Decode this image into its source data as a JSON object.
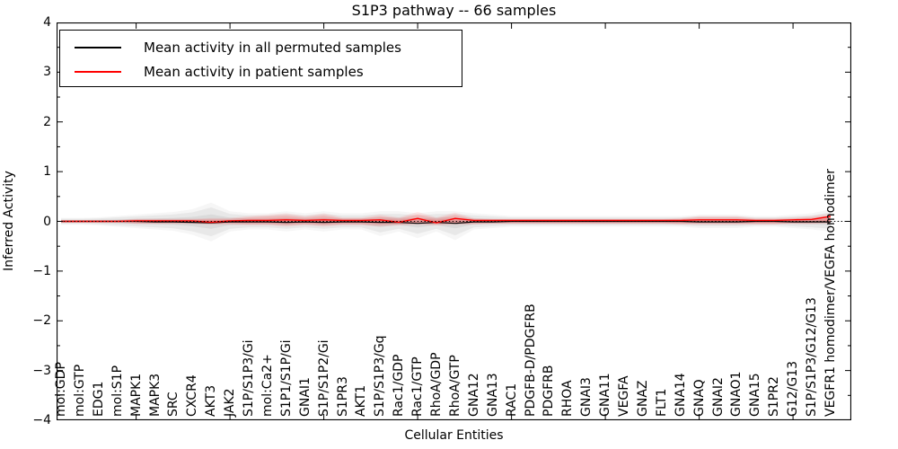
{
  "title": "S1P3 pathway -- 66 samples",
  "axes": {
    "xlabel": "Cellular Entities",
    "ylabel": "Inferred Activity",
    "ytick_labels": [
      "4",
      "3",
      "2",
      "1",
      "0",
      "−1",
      "−2",
      "−3",
      "−4"
    ],
    "ytick_values": [
      4,
      3,
      2,
      1,
      0,
      -1,
      -2,
      -3,
      -4
    ]
  },
  "legend": {
    "items": [
      {
        "label": "Mean activity in all permuted samples",
        "color": "#000000"
      },
      {
        "label": "Mean activity in patient samples",
        "color": "#ff0000"
      }
    ]
  },
  "chart_data": {
    "type": "line",
    "title": "S1P3 pathway -- 66 samples",
    "xlabel": "Cellular Entities",
    "ylabel": "Inferred Activity",
    "ylim": [
      -4,
      4
    ],
    "grid": false,
    "legend_position": "upper left",
    "xtick_major_positions": [
      5,
      10,
      15,
      20,
      25,
      30,
      35,
      40
    ],
    "categories": [
      "mol:GDP",
      "mol:GTP",
      "EDG1",
      "mol:S1P",
      "MAPK1",
      "MAPK3",
      "SRC",
      "CXCR4",
      "AKT3",
      "JAK2",
      "S1P/S1P3/Gi",
      "mol:Ca2+",
      "S1P1/S1P/Gi",
      "GNAI1",
      "S1P/S1P2/Gi",
      "S1PR3",
      "AKT1",
      "S1P/S1P3/Gq",
      "Rac1/GDP",
      "Rac1/GTP",
      "RhoA/GDP",
      "RhoA/GTP",
      "GNA12",
      "GNA13",
      "RAC1",
      "PDGFB-D/PDGFRB",
      "PDGFRB",
      "RHOA",
      "GNAI3",
      "GNA11",
      "VEGFA",
      "GNAZ",
      "FLT1",
      "GNA14",
      "GNAQ",
      "GNAI2",
      "GNAO1",
      "GNA15",
      "S1PR2",
      "G12/G13",
      "S1P/S1P3/G12/G13",
      "VEGFR1 homodimer/VEGFA homodimer"
    ],
    "series": [
      {
        "name": "Mean activity in all permuted samples",
        "color": "#000000",
        "values": [
          0,
          0,
          0,
          0,
          0,
          -0.01,
          -0.01,
          -0.02,
          -0.03,
          -0.01,
          -0.01,
          -0.01,
          -0.02,
          -0.01,
          -0.02,
          -0.01,
          -0.01,
          -0.02,
          -0.02,
          -0.04,
          -0.02,
          -0.04,
          -0.01,
          -0.01,
          0,
          0,
          0,
          0,
          0,
          0,
          0,
          0,
          0,
          0,
          -0.01,
          -0.01,
          -0.01,
          0,
          0,
          -0.01,
          -0.01,
          -0.01
        ]
      },
      {
        "name": "Mean activity in patient samples",
        "color": "#ff0000",
        "values": [
          0,
          0,
          0,
          0,
          0.01,
          0.01,
          0.01,
          0.01,
          -0.02,
          0.01,
          0.02,
          0.02,
          0.03,
          0.02,
          0.03,
          0.02,
          0.02,
          0.03,
          -0.02,
          0.06,
          -0.03,
          0.06,
          0.02,
          0.02,
          0.02,
          0.02,
          0.02,
          0.02,
          0.02,
          0.02,
          0.02,
          0.02,
          0.02,
          0.02,
          0.03,
          0.03,
          0.03,
          0.02,
          0.02,
          0.03,
          0.04,
          0.1
        ]
      }
    ],
    "bands": [
      {
        "name": "permuted-sample-spread",
        "color": "#888888",
        "upper": [
          0.05,
          0.05,
          0.06,
          0.08,
          0.1,
          0.12,
          0.14,
          0.18,
          0.28,
          0.15,
          0.12,
          0.12,
          0.15,
          0.12,
          0.15,
          0.12,
          0.12,
          0.15,
          0.15,
          0.12,
          0.15,
          0.15,
          0.12,
          0.1,
          0.08,
          0.08,
          0.08,
          0.08,
          0.08,
          0.08,
          0.08,
          0.08,
          0.08,
          0.08,
          0.1,
          0.1,
          0.1,
          0.08,
          0.08,
          0.1,
          0.12,
          0.18
        ],
        "lower": [
          -0.05,
          -0.05,
          -0.06,
          -0.08,
          -0.1,
          -0.12,
          -0.14,
          -0.2,
          -0.3,
          -0.15,
          -0.12,
          -0.12,
          -0.15,
          -0.12,
          -0.15,
          -0.12,
          -0.12,
          -0.22,
          -0.15,
          -0.25,
          -0.15,
          -0.28,
          -0.12,
          -0.1,
          -0.08,
          -0.08,
          -0.08,
          -0.08,
          -0.08,
          -0.08,
          -0.08,
          -0.08,
          -0.08,
          -0.08,
          -0.1,
          -0.1,
          -0.1,
          -0.08,
          -0.08,
          -0.1,
          -0.12,
          -0.15
        ]
      },
      {
        "name": "patient-sample-spread",
        "color": "#ff0000",
        "upper": [
          0.02,
          0.02,
          0.02,
          0.02,
          0.04,
          0.04,
          0.04,
          0.04,
          0.05,
          0.05,
          0.08,
          0.1,
          0.12,
          0.08,
          0.12,
          0.06,
          0.06,
          0.1,
          0.06,
          0.14,
          0.06,
          0.13,
          0.05,
          0.04,
          0.04,
          0.04,
          0.04,
          0.04,
          0.04,
          0.04,
          0.04,
          0.04,
          0.04,
          0.05,
          0.08,
          0.08,
          0.08,
          0.05,
          0.05,
          0.06,
          0.08,
          0.12
        ],
        "lower": [
          -0.02,
          -0.02,
          -0.02,
          -0.02,
          -0.04,
          -0.04,
          -0.04,
          -0.04,
          -0.05,
          -0.05,
          -0.06,
          -0.06,
          -0.08,
          -0.06,
          -0.08,
          -0.06,
          -0.06,
          -0.08,
          -0.06,
          -0.05,
          -0.06,
          -0.05,
          -0.05,
          -0.04,
          -0.04,
          -0.04,
          -0.04,
          -0.04,
          -0.04,
          -0.04,
          -0.04,
          -0.04,
          -0.04,
          -0.05,
          -0.05,
          -0.05,
          -0.05,
          -0.05,
          -0.05,
          -0.04,
          -0.04,
          -0.03
        ]
      }
    ],
    "zero_line": {
      "value": 0,
      "style": "dotted",
      "color": "#000000"
    }
  }
}
